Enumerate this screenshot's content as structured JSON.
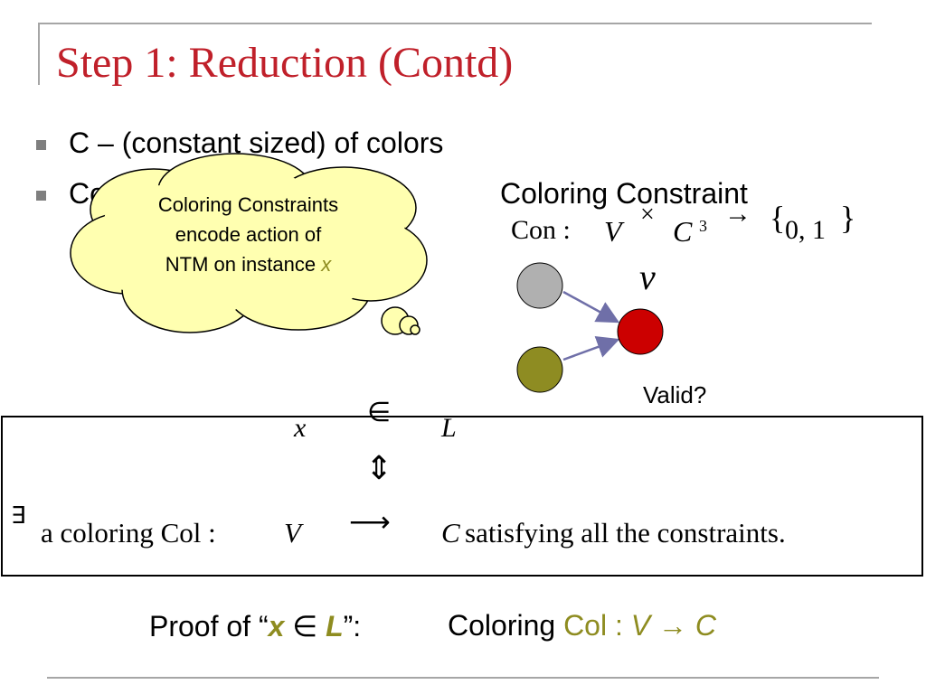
{
  "title": "Step 1: Reduction (Contd)",
  "bullets": [
    "C – (constant sized) of colors",
    "Co"
  ],
  "cloud": {
    "line1": "Coloring Constraints",
    "line2": "encode action of",
    "line3_prefix": "NTM on instance ",
    "line3_var": "x"
  },
  "constraint": {
    "heading": "Coloring Constraint",
    "con": "Con :",
    "V": "V",
    "times": "×",
    "C": "C",
    "exp": "3",
    "arrow": "→",
    "lbrace": "{",
    "set": "0, 1",
    "rbrace": "}"
  },
  "graph": {
    "v_label": "v",
    "valid_label": "Valid?",
    "node_colors": {
      "top": "#b0b0b0",
      "bottom": "#8e8c22",
      "target": "#cc0000",
      "arrow": "#6f6fa8"
    }
  },
  "equivalence": {
    "x": "x",
    "in": "∈",
    "L": "L",
    "iff": "⇕",
    "exists": "∃",
    "coloring_prefix": "a coloring Col : ",
    "V": "V",
    "arrow": "⟶",
    "C": "C",
    "suffix": " satisfying all the constraints."
  },
  "proof": {
    "prefix": "Proof of “",
    "x": "x",
    "in": " ∈ ",
    "L": "L",
    "suffix": "”:",
    "coloring_label": "Coloring ",
    "col": "Col : ",
    "V": "V",
    "arrow": " → ",
    "C": "C"
  }
}
